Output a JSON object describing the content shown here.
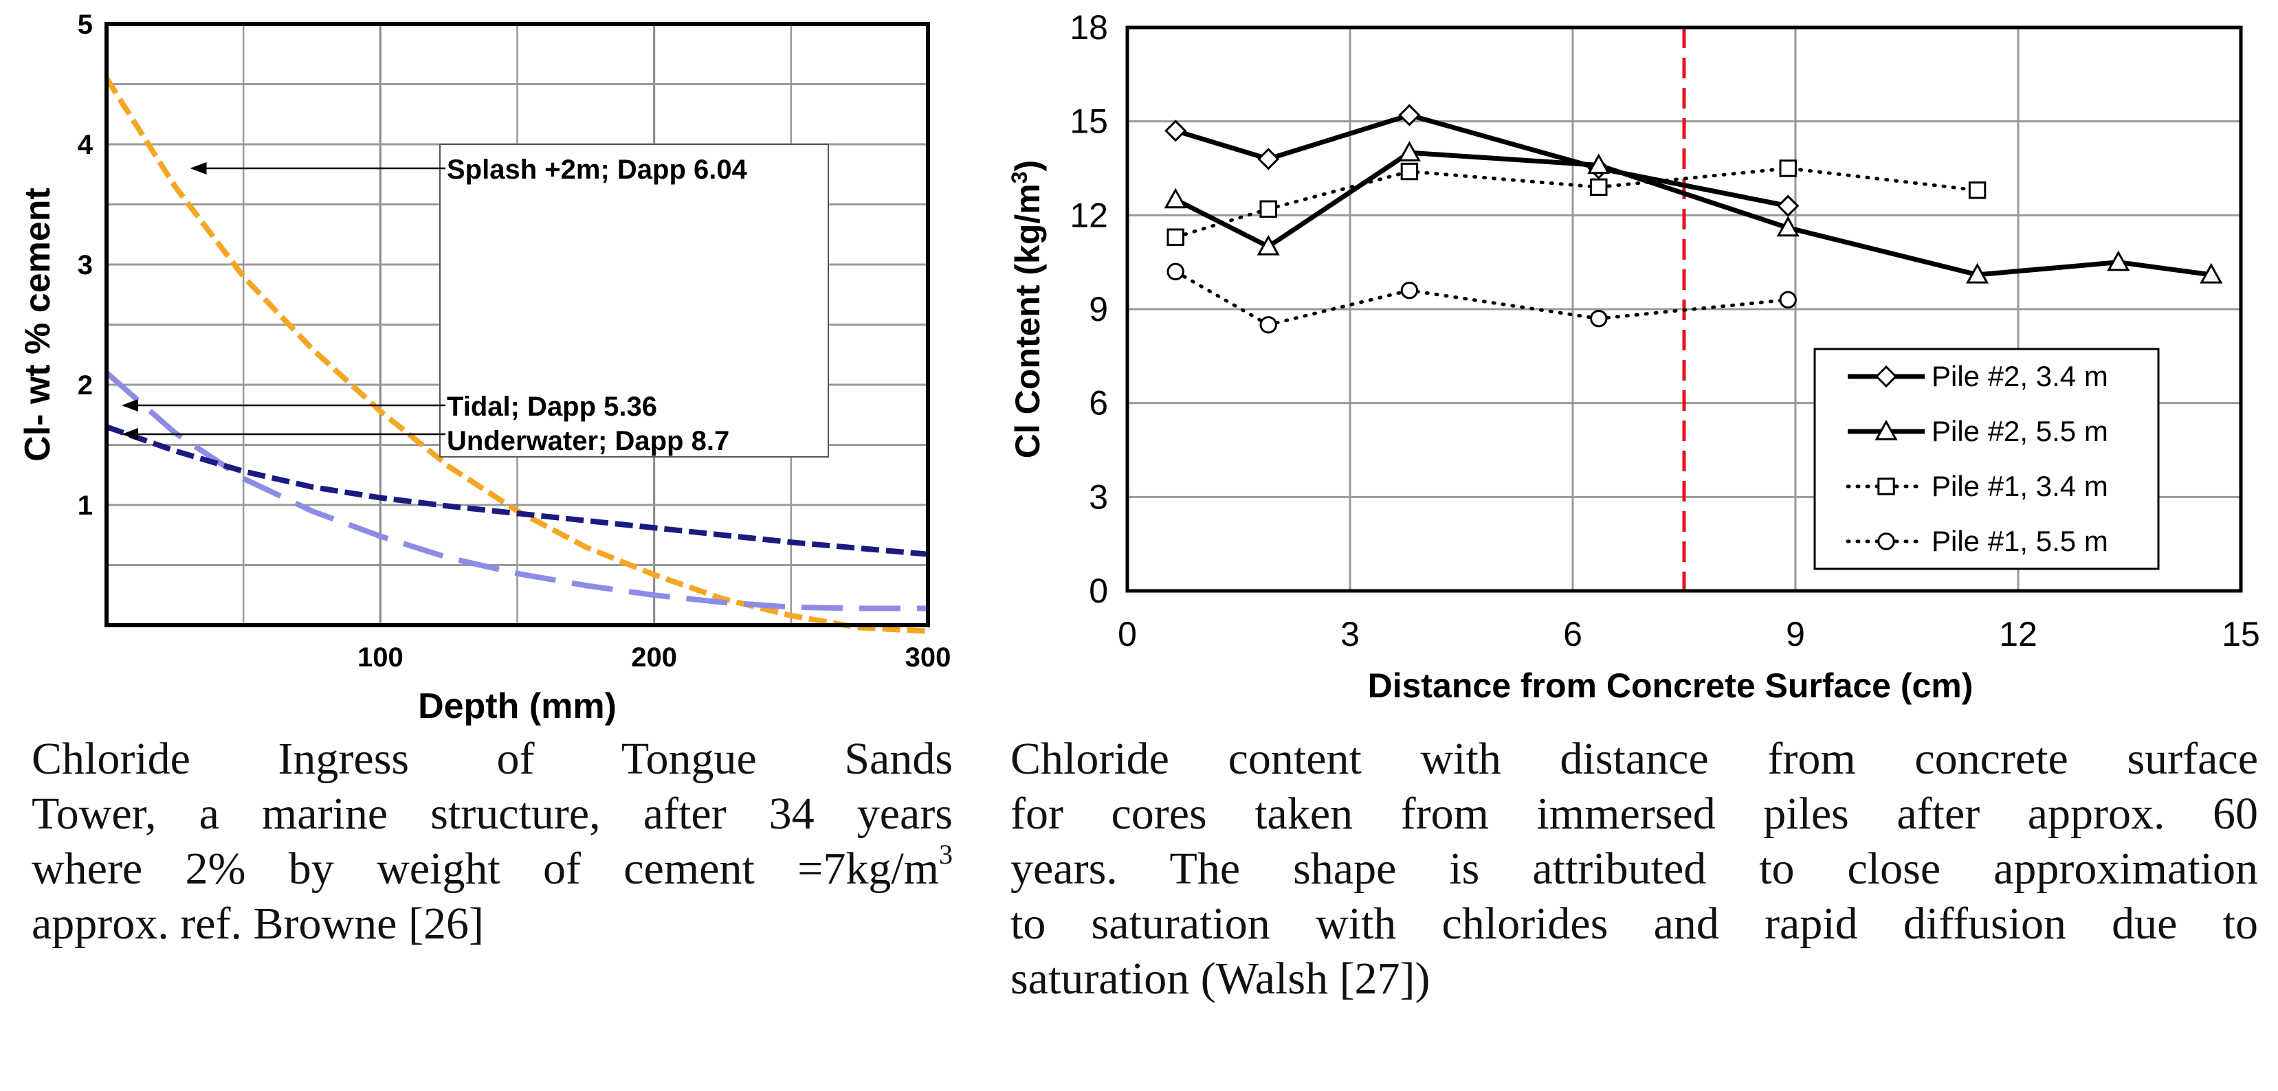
{
  "chart_data": [
    {
      "type": "line",
      "title": "",
      "xlabel": "Depth (mm)",
      "ylabel": "Cl- wt % cement",
      "xlim": [
        0,
        300
      ],
      "ylim": [
        0,
        5
      ],
      "xticks": [
        100,
        200,
        300
      ],
      "yticks": [
        1,
        2,
        3,
        4,
        5
      ],
      "grid": true,
      "series": [
        {
          "name": "Splash +2m; Dapp 6.04",
          "color": "#f5a623",
          "dash": "dashed",
          "x": [
            0,
            25,
            50,
            75,
            100,
            125,
            150,
            175,
            200,
            225,
            250,
            275,
            300
          ],
          "y": [
            4.55,
            3.65,
            2.9,
            2.3,
            1.78,
            1.32,
            0.95,
            0.65,
            0.42,
            0.22,
            0.08,
            -0.02,
            -0.06
          ],
          "annotation_y": 3.8
        },
        {
          "name": "Tidal; Dapp 5.36",
          "color": "#8c8ce6",
          "dash": "longdash",
          "x": [
            0,
            25,
            50,
            75,
            100,
            125,
            150,
            175,
            200,
            225,
            250,
            275,
            300
          ],
          "y": [
            2.1,
            1.6,
            1.22,
            0.95,
            0.74,
            0.56,
            0.43,
            0.33,
            0.25,
            0.19,
            0.15,
            0.14,
            0.14
          ],
          "annotation_y": 1.85
        },
        {
          "name": "Underwater; Dapp 8.7",
          "color": "#1a1a80",
          "dash": "dashed",
          "x": [
            0,
            25,
            50,
            75,
            100,
            125,
            150,
            175,
            200,
            225,
            250,
            275,
            300
          ],
          "y": [
            1.65,
            1.45,
            1.28,
            1.15,
            1.06,
            0.99,
            0.93,
            0.87,
            0.81,
            0.75,
            0.69,
            0.64,
            0.59
          ],
          "annotation_y": 1.6
        }
      ]
    },
    {
      "type": "line",
      "title": "",
      "xlabel": "Distance from Concrete Surface (cm)",
      "ylabel": "Cl Content  (kg/m3)",
      "xlim": [
        0,
        15
      ],
      "ylim": [
        0,
        18
      ],
      "xticks": [
        0,
        3,
        6,
        9,
        12,
        15
      ],
      "yticks": [
        0,
        3,
        6,
        9,
        12,
        15,
        18
      ],
      "grid": true,
      "reference_line_x": 7.5,
      "legend_position": "bottom-right",
      "series": [
        {
          "name": "Pile #2, 3.4 m",
          "marker": "diamond",
          "line": "solid",
          "x": [
            0.65,
            1.9,
            3.8,
            6.35,
            8.9
          ],
          "y": [
            14.7,
            13.8,
            15.2,
            13.5,
            12.3
          ]
        },
        {
          "name": "Pile #2, 5.5 m",
          "marker": "triangle",
          "line": "solid",
          "x": [
            0.65,
            1.9,
            3.8,
            6.35,
            8.9,
            11.45,
            13.35,
            14.6
          ],
          "y": [
            12.5,
            11.0,
            14.0,
            13.6,
            11.6,
            10.1,
            10.5,
            10.1
          ]
        },
        {
          "name": "Pile #1, 3.4 m",
          "marker": "square",
          "line": "dotted",
          "x": [
            0.65,
            1.9,
            3.8,
            6.35,
            8.9,
            11.45
          ],
          "y": [
            11.3,
            12.2,
            13.4,
            12.9,
            13.5,
            12.8
          ]
        },
        {
          "name": "Pile #1, 5.5 m",
          "marker": "circle",
          "line": "dotted",
          "x": [
            0.65,
            1.9,
            3.8,
            6.35,
            8.9
          ],
          "y": [
            10.2,
            8.5,
            9.6,
            8.7,
            9.3
          ]
        }
      ]
    }
  ],
  "captions": {
    "left": [
      "Chloride Ingress of Tongue Sands",
      "Tower, a marine structure, after 34 years",
      "where 2% by weight of cement =7kg/m",
      "approx. ref. Browne [26]"
    ],
    "left_sup": "3",
    "right": [
      "Chloride content with distance from concrete surface",
      "for cores taken from immersed piles after approx. 60",
      "years.    The shape is attributed to close approximation",
      "to saturation with chlorides and rapid diffusion due to",
      "saturation (Walsh [27])"
    ]
  }
}
